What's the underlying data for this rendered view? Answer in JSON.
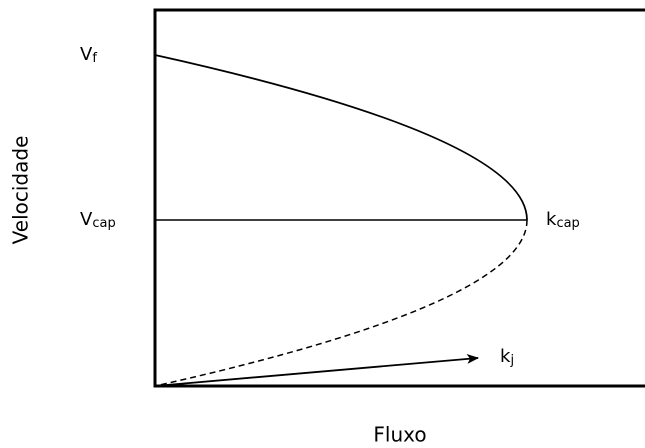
{
  "labels": {
    "vf": {
      "main": "V",
      "sub": "f"
    },
    "vcap": {
      "main": "V",
      "sub": "cap"
    },
    "kcap": {
      "main": "k",
      "sub": "cap"
    },
    "kj": {
      "main": "k",
      "sub": "j"
    }
  },
  "axes": {
    "y_label": "Velocidade",
    "x_label": "Fluxo"
  }
}
